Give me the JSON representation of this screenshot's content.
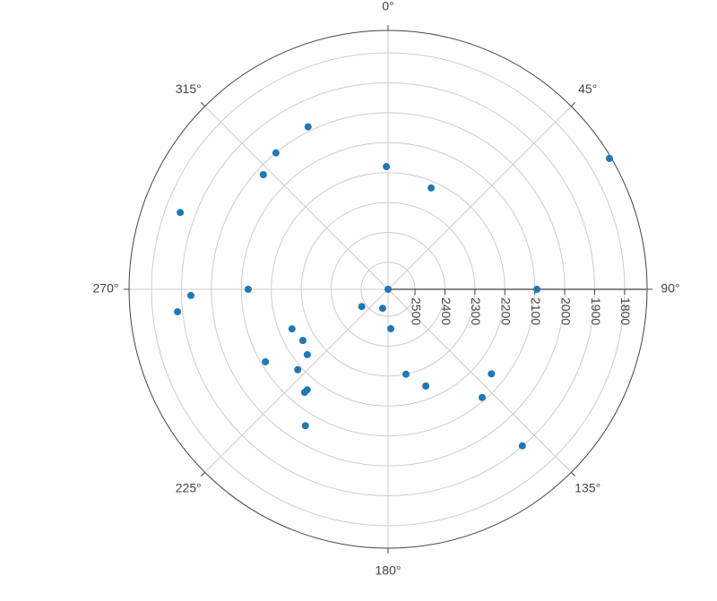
{
  "chart_data": {
    "type": "polar",
    "color": "#1f77b4",
    "r": [
      2590,
      1731,
      2093,
      2222,
      2180,
      1985,
      2000,
      2024,
      1850,
      2123,
      1931,
      1883,
      2485,
      2524,
      2458,
      2243,
      2258,
      2243,
      2114,
      2186,
      2159,
      2147,
      2057,
      2300,
      2243,
      2144,
      2111,
      1901
    ],
    "theta": [
      0,
      59.4,
      90,
      23.0,
      359.2,
      333.8,
      320.6,
      312.6,
      290.3,
      270,
      268.2,
      263.9,
      236.8,
      196,
      176.1,
      247.6,
      239,
      231,
      239.4,
      228.3,
      218.8,
      219,
      211.2,
      168.1,
      158.7,
      129.3,
      139,
      139.4
    ],
    "rlim": [
      2590,
      1725
    ],
    "rticks": [
      2500,
      2400,
      2300,
      2200,
      2100,
      2000,
      1900,
      1800
    ],
    "angularticks": [
      {
        "value": 0,
        "label": "0°"
      },
      {
        "value": 45,
        "label": "45°"
      },
      {
        "value": 90,
        "label": "90°"
      },
      {
        "value": 135,
        "label": "135°"
      },
      {
        "value": 180,
        "label": "180°"
      },
      {
        "value": 225,
        "label": "225°"
      },
      {
        "value": 270,
        "label": "270°"
      },
      {
        "value": 315,
        "label": "315°"
      }
    ],
    "grid": true
  }
}
